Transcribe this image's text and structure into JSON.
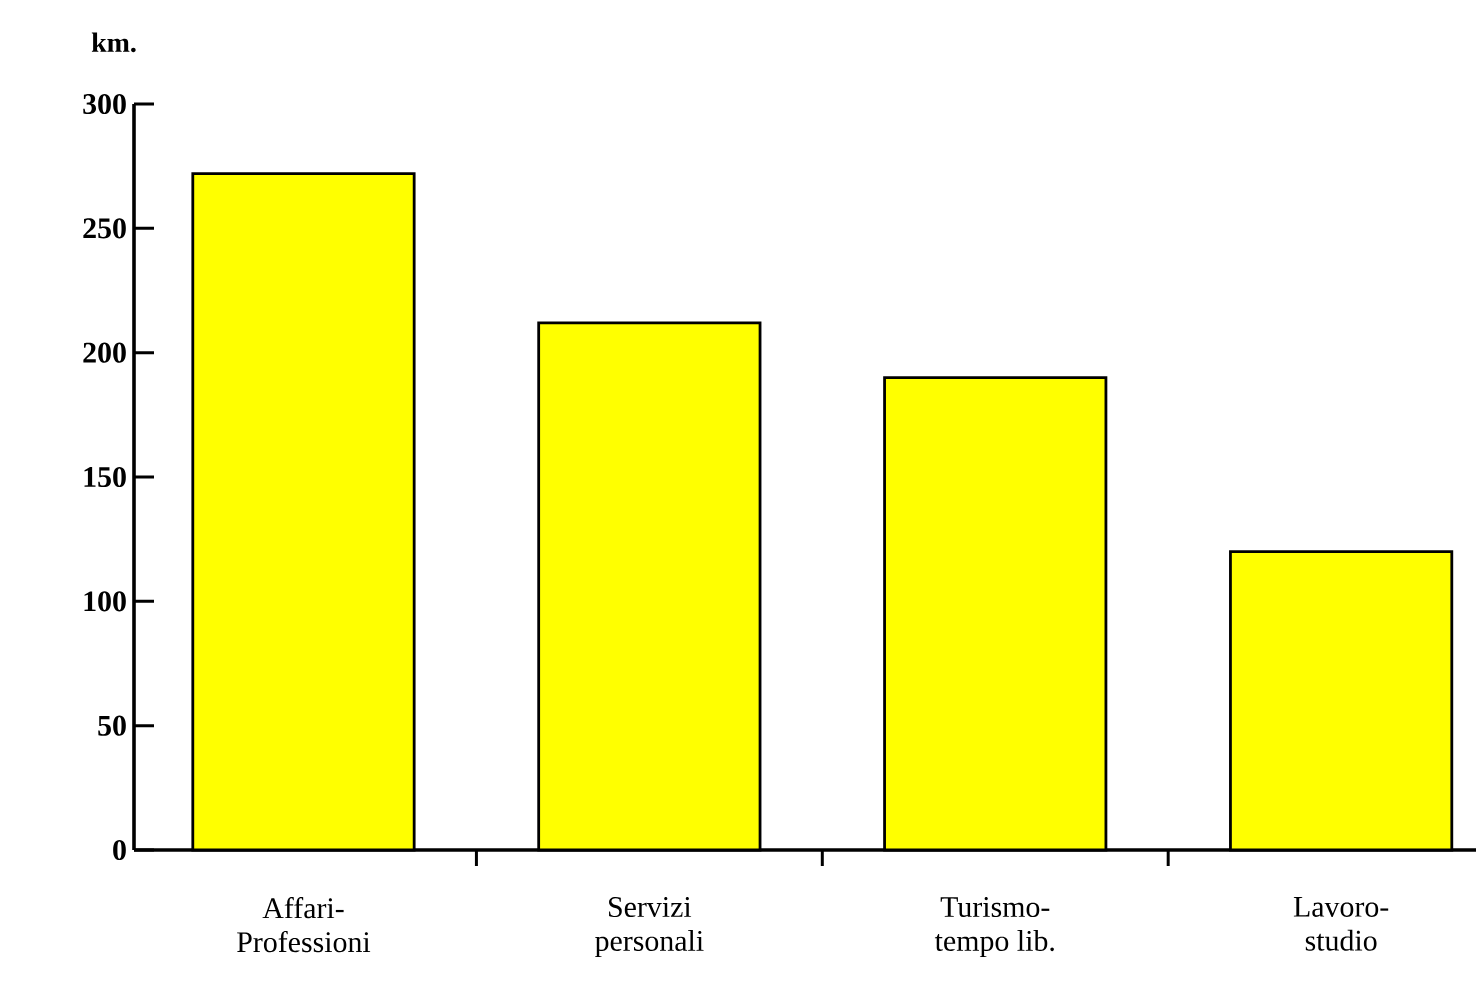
{
  "chart_data": {
    "type": "bar",
    "ylabel": "km.",
    "categories": [
      "Affari-\nProfessioni",
      "Servizi\npersonali",
      "Turismo-\ntempo lib.",
      "Lavoro-\nstudio"
    ],
    "values": [
      272,
      212,
      190,
      120
    ],
    "color": "#ffff00",
    "ylim": [
      0,
      300
    ],
    "yticks": [
      0,
      50,
      100,
      150,
      200,
      250,
      300
    ],
    "grid": false
  }
}
